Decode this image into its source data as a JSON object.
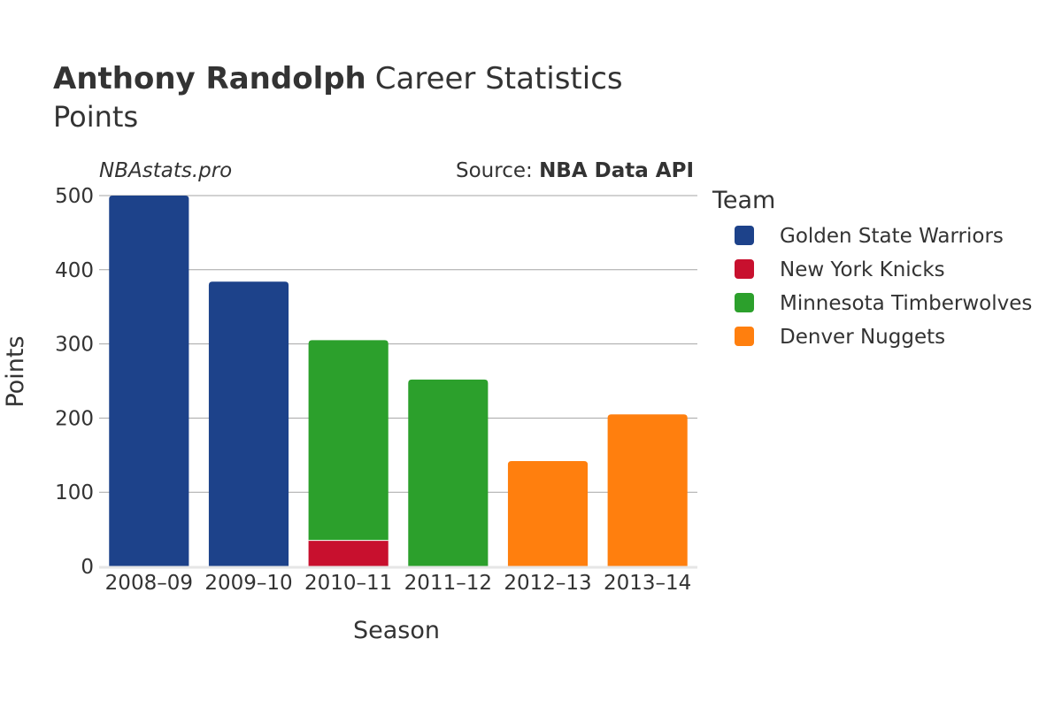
{
  "title": {
    "bold": "Anthony Randolph",
    "rest": "Career Statistics",
    "subtitle": "Points"
  },
  "watermark": "NBAstats.pro",
  "source": {
    "prefix": "Source: ",
    "name": "NBA Data API"
  },
  "chart_data": {
    "type": "bar",
    "stacked": true,
    "categories": [
      "2008–09",
      "2009–10",
      "2010–11",
      "2011–12",
      "2012–13",
      "2013–14"
    ],
    "series": [
      {
        "name": "Golden State Warriors",
        "color": "#1d428a",
        "values": [
          500,
          384,
          0,
          0,
          0,
          0
        ]
      },
      {
        "name": "New York Knicks",
        "color": "#c8102e",
        "values": [
          0,
          0,
          35,
          0,
          0,
          0
        ]
      },
      {
        "name": "Minnesota Timberwolves",
        "color": "#2ca02c",
        "values": [
          0,
          0,
          270,
          252,
          0,
          0
        ]
      },
      {
        "name": "Denver Nuggets",
        "color": "#ff7f0e",
        "values": [
          0,
          0,
          0,
          0,
          142,
          205
        ]
      }
    ],
    "xlabel": "Season",
    "ylabel": "Points",
    "ylim": [
      0,
      500
    ],
    "yticks": [
      0,
      100,
      200,
      300,
      400,
      500
    ],
    "grid": true,
    "legend_title": "Team",
    "legend_position": "right"
  }
}
